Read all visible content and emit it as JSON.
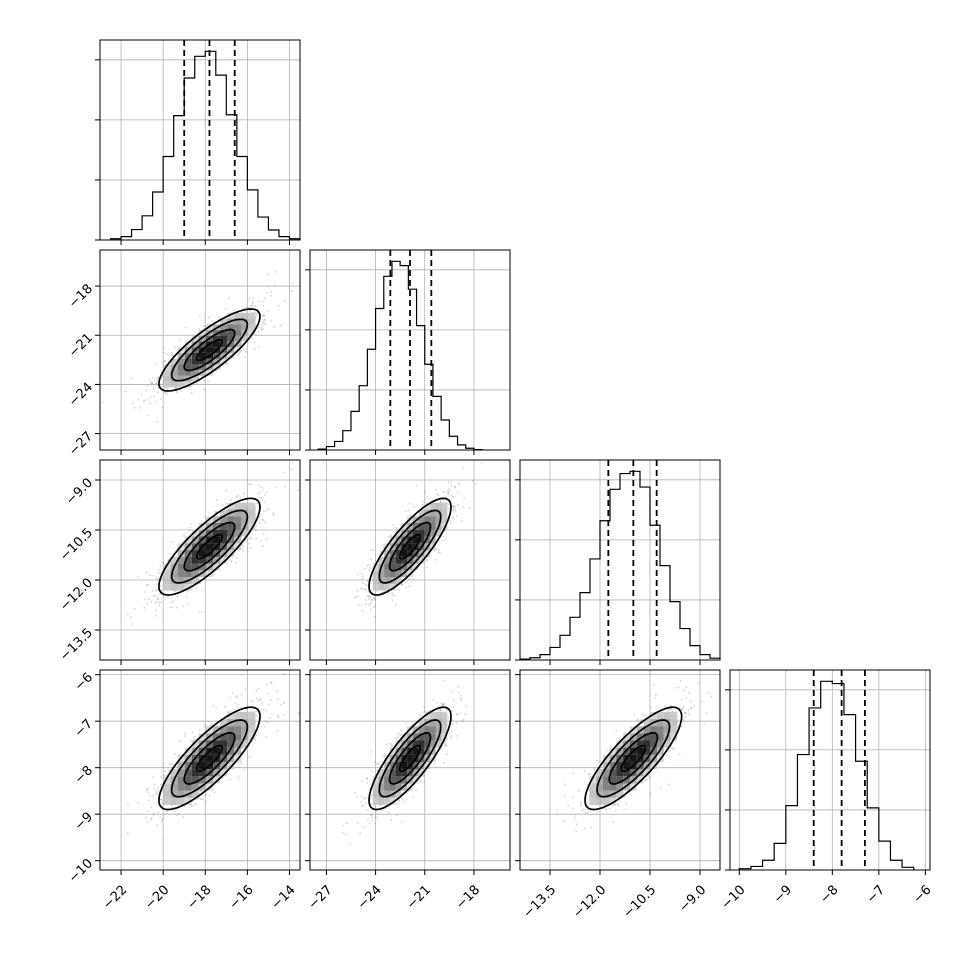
{
  "chart_data": {
    "type": "corner",
    "title": "",
    "parameters": [
      {
        "xlim": [
          -23,
          -13.5
        ],
        "xticks": [
          -22,
          -20,
          -18,
          -16,
          -14
        ],
        "xticklabels": [
          "−22",
          "−20",
          "−18",
          "−16",
          "−14"
        ],
        "median": -17.8,
        "q16": -19.0,
        "q84": -16.6,
        "hist": {
          "edges": [
            -22.5,
            -22,
            -21.5,
            -21,
            -20.5,
            -20,
            -19.5,
            -19,
            -18.5,
            -18,
            -17.5,
            -17,
            -16.5,
            -16,
            -15.5,
            -15,
            -14.5,
            -14,
            -13.5
          ],
          "counts": [
            3,
            8,
            25,
            58,
            115,
            200,
            298,
            388,
            440,
            452,
            395,
            300,
            200,
            120,
            55,
            24,
            8,
            3
          ]
        }
      },
      {
        "xlim": [
          -28,
          -15.8
        ],
        "xticks": [
          -27,
          -24,
          -21,
          -18
        ],
        "xticklabels": [
          "−27",
          "−24",
          "−21",
          "−18"
        ],
        "ylim": [
          -28,
          -15.8
        ],
        "yticks": [
          -18,
          -21,
          -24,
          -27
        ],
        "yticklabels": [
          "−18",
          "−21",
          "−24",
          "−27"
        ],
        "median": -21.9,
        "q16": -23.1,
        "q84": -20.6,
        "hist": {
          "edges": [
            -27.5,
            -27,
            -26.5,
            -26,
            -25.5,
            -25,
            -24.5,
            -24,
            -23.5,
            -23,
            -22.5,
            -22,
            -21.5,
            -21,
            -20.5,
            -20,
            -19.5,
            -19,
            -18.5,
            -18,
            -17.5
          ],
          "counts": [
            2,
            8,
            20,
            45,
            90,
            150,
            235,
            330,
            405,
            440,
            430,
            375,
            290,
            200,
            125,
            70,
            32,
            12,
            4,
            1
          ]
        }
      },
      {
        "xlim": [
          -14.4,
          -8.4
        ],
        "xticks": [
          -13.5,
          -12.0,
          -10.5,
          -9.0
        ],
        "xticklabels": [
          "−13.5",
          "−12.0",
          "−10.5",
          "−9.0"
        ],
        "ylim": [
          -14.4,
          -8.4
        ],
        "yticks": [
          -9.0,
          -10.5,
          -12.0,
          -13.5
        ],
        "yticklabels": [
          "−9.0",
          "−10.5",
          "−12.0",
          "−13.5"
        ],
        "median": -11.0,
        "q16": -11.75,
        "q84": -10.3,
        "hist": {
          "edges": [
            -14.4,
            -14.1,
            -13.8,
            -13.5,
            -13.2,
            -12.9,
            -12.6,
            -12.3,
            -12.0,
            -11.7,
            -11.4,
            -11.1,
            -10.8,
            -10.5,
            -10.2,
            -9.9,
            -9.6,
            -9.3,
            -9.0,
            -8.7,
            -8.4
          ],
          "counts": [
            2,
            5,
            12,
            28,
            55,
            95,
            150,
            225,
            310,
            380,
            415,
            420,
            385,
            300,
            210,
            130,
            70,
            32,
            12,
            4
          ]
        }
      },
      {
        "xlim": [
          -10.2,
          -5.9
        ],
        "xticks": [
          -10,
          -9,
          -8,
          -7,
          -6
        ],
        "xticklabels": [
          "−10",
          "−9",
          "−8",
          "−7",
          "−6"
        ],
        "ylim": [
          -10.2,
          -5.9
        ],
        "yticks": [
          -6,
          -7,
          -8,
          -9,
          -10
        ],
        "yticklabels": [
          "−6",
          "−7",
          "−8",
          "−9",
          "−10"
        ],
        "median": -7.8,
        "q16": -8.4,
        "q84": -7.3,
        "hist": {
          "edges": [
            -10.0,
            -9.75,
            -9.5,
            -9.25,
            -9.0,
            -8.75,
            -8.5,
            -8.25,
            -8.0,
            -7.75,
            -7.5,
            -7.25,
            -7.0,
            -6.75,
            -6.5,
            -6.25
          ],
          "counts": [
            3,
            8,
            22,
            60,
            145,
            260,
            365,
            425,
            420,
            350,
            245,
            140,
            65,
            22,
            6
          ]
        }
      }
    ],
    "grid": true,
    "contour_levels": [
      0.5,
      1.0,
      1.5,
      2.0
    ]
  },
  "colors": {
    "frame": "#000000",
    "grid": "#b0b0b0",
    "points": "#808080"
  }
}
